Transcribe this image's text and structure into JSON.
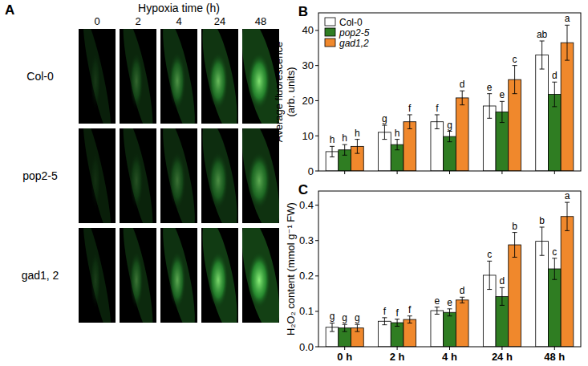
{
  "chart_data": [
    {
      "type": "bar",
      "annotations": [
        "B"
      ],
      "categories": [
        null,
        null,
        null,
        null,
        null
      ],
      "y_label": "Average fluorescence\n(arb. units)",
      "ylim": [
        0,
        45
      ],
      "yticks": [
        0,
        10,
        20,
        30,
        40
      ],
      "tick_labels": "y",
      "legend": "upper left",
      "series": [
        {
          "name": "Col-0",
          "color": "#ffffff",
          "values": [
            5.5,
            11,
            14,
            18.5,
            33
          ],
          "errors": [
            1.5,
            2,
            2,
            3.5,
            4
          ],
          "letters": [
            "h",
            "g",
            "f",
            "e",
            "ab"
          ]
        },
        {
          "name": "pop2-5",
          "color": "#2f7d22",
          "values": [
            6,
            7.5,
            9.8,
            16.8,
            21.8
          ],
          "errors": [
            1.5,
            1.5,
            1.5,
            3,
            3.5
          ],
          "letters": [
            "h",
            "h",
            "g",
            "e",
            "d"
          ]
        },
        {
          "name": "gad1,2",
          "color": "#f0882c",
          "values": [
            7,
            14,
            20.8,
            26,
            36.5
          ],
          "errors": [
            2,
            2,
            2,
            4,
            5
          ],
          "letters": [
            "h",
            "f",
            "d",
            "c",
            "a"
          ]
        }
      ]
    },
    {
      "type": "bar",
      "annotations": [
        "C"
      ],
      "categories": [
        "0 h",
        "2 h",
        "4 h",
        "24 h",
        "48 h"
      ],
      "y_label": "H₂O₂ content (mmol g⁻¹ FW)",
      "ylim": [
        0,
        0.44
      ],
      "yticks": [
        {
          "value": 0,
          "label": "0.0"
        },
        {
          "value": 0.1,
          "label": "0.1"
        },
        {
          "value": 0.2,
          "label": "0.2"
        },
        {
          "value": 0.3,
          "label": "0.3"
        },
        {
          "value": 0.4,
          "label": "0.4"
        }
      ],
      "series": [
        {
          "color": "#ffffff",
          "values": [
            0.055,
            0.072,
            0.102,
            0.202,
            0.298
          ],
          "errors": [
            0.012,
            0.01,
            0.01,
            0.04,
            0.04
          ],
          "letters": [
            "g",
            "f",
            "e",
            "c",
            "b"
          ]
        },
        {
          "color": "#2f7d22",
          "values": [
            0.053,
            0.068,
            0.097,
            0.142,
            0.22
          ],
          "errors": [
            0.01,
            0.01,
            0.01,
            0.025,
            0.03
          ],
          "letters": [
            "g",
            "f",
            "e",
            "d",
            "c"
          ]
        },
        {
          "color": "#f0882c",
          "values": [
            0.053,
            0.077,
            0.132,
            0.288,
            0.368
          ],
          "errors": [
            0.01,
            0.01,
            0.008,
            0.035,
            0.04
          ],
          "letters": [
            "g",
            "f",
            "d",
            "b",
            "a"
          ]
        }
      ]
    }
  ],
  "panel_a": {
    "label": "A",
    "title": "Hypoxia time (h)",
    "columns": [
      "0",
      "2",
      "4",
      "24",
      "48"
    ],
    "rows": [
      "Col-0",
      "pop2-5",
      "gad1, 2"
    ]
  }
}
